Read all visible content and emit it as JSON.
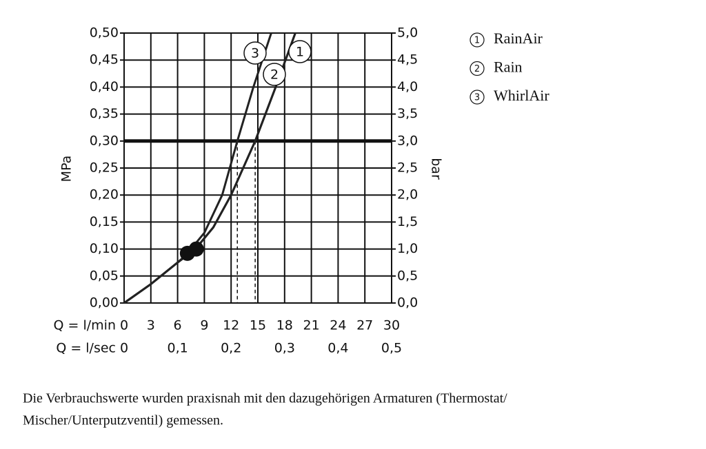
{
  "chart_data": {
    "type": "line",
    "xlabel": "Q = l/min",
    "ylabel": "MPa",
    "y2label": "bar",
    "x2label": "Q = l/sec",
    "xlim": [
      0,
      30
    ],
    "xticks": [
      0,
      3,
      6,
      9,
      12,
      15,
      18,
      21,
      24,
      27,
      30
    ],
    "x2lim": [
      0,
      0.5
    ],
    "x2ticks": [
      0,
      {
        "value": 0.1,
        "label": "0,1"
      },
      {
        "value": 0.2,
        "label": "0,2"
      },
      {
        "value": 0.3,
        "label": "0,3"
      },
      {
        "value": 0.4,
        "label": "0,4"
      },
      {
        "value": 0.5,
        "label": "0,5"
      }
    ],
    "ylim": [
      0,
      0.5
    ],
    "yticks": [
      {
        "value": 0,
        "label": "0,00"
      },
      {
        "value": 0.05,
        "label": "0,05"
      },
      {
        "value": 0.1,
        "label": "0,10"
      },
      {
        "value": 0.15,
        "label": "0,15"
      },
      {
        "value": 0.2,
        "label": "0,20"
      },
      {
        "value": 0.25,
        "label": "0,25"
      },
      {
        "value": 0.3,
        "label": "0,30"
      },
      {
        "value": 0.35,
        "label": "0,35"
      },
      {
        "value": 0.4,
        "label": "0,40"
      },
      {
        "value": 0.45,
        "label": "0,45"
      },
      {
        "value": 0.5,
        "label": "0,50"
      }
    ],
    "y2lim": [
      0,
      5
    ],
    "y2ticks": [
      {
        "value": 0,
        "label": "0,0"
      },
      {
        "value": 0.5,
        "label": "0,5"
      },
      {
        "value": 1,
        "label": "1,0"
      },
      {
        "value": 1.5,
        "label": "1,5"
      },
      {
        "value": 2,
        "label": "2,0"
      },
      {
        "value": 2.5,
        "label": "2,5"
      },
      {
        "value": 3,
        "label": "3,0"
      },
      {
        "value": 3.5,
        "label": "3,5"
      },
      {
        "value": 4,
        "label": "4,0"
      },
      {
        "value": 4.5,
        "label": "4,5"
      },
      {
        "value": 5,
        "label": "5,0"
      }
    ],
    "grid": true,
    "reference_y": 0.3,
    "reference_x": [
      12.7,
      14.7
    ],
    "series": [
      {
        "name": "RainAir",
        "number": "1",
        "color": "#222222",
        "x": [
          0,
          3,
          6,
          8,
          10,
          12,
          14.7,
          17,
          19.2
        ],
        "values": [
          0,
          0.035,
          0.075,
          0.1,
          0.14,
          0.2,
          0.3,
          0.4,
          0.5
        ]
      },
      {
        "name": "Rain",
        "number": "2",
        "color": "#222222",
        "x": [
          0,
          3,
          6,
          8,
          10,
          12,
          14.7,
          17,
          19.2
        ],
        "values": [
          0,
          0.035,
          0.075,
          0.1,
          0.14,
          0.2,
          0.3,
          0.4,
          0.5
        ]
      },
      {
        "name": "WhirlAir",
        "number": "3",
        "color": "#222222",
        "x": [
          0,
          3,
          6,
          7,
          9,
          11,
          12.7,
          14.5,
          16.5
        ],
        "values": [
          0,
          0.035,
          0.075,
          0.09,
          0.13,
          0.2,
          0.3,
          0.4,
          0.5
        ]
      }
    ],
    "highlight_points": {
      "x": [
        7.1,
        8.1
      ],
      "values": [
        0.092,
        0.1
      ]
    },
    "notes": [
      "Die Verbrauchswerte wurden praxisnah mit den dazugehörigen Armaturen (Thermostat/",
      "Mischer/Unterputzventil) gemessen."
    ]
  }
}
